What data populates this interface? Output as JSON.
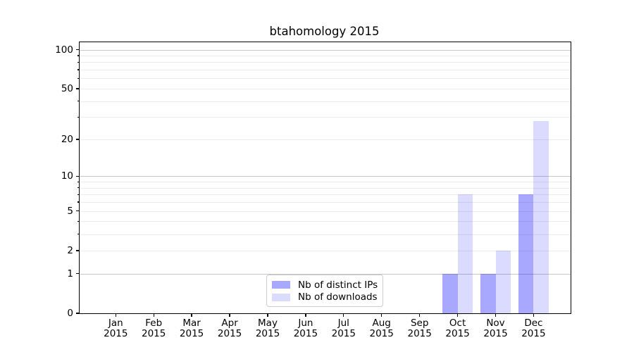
{
  "chart_data": {
    "type": "bar",
    "title": "btahomology 2015",
    "x_axis": {
      "categories": [
        "Jan 2015",
        "Feb 2015",
        "Mar 2015",
        "Apr 2015",
        "May 2015",
        "Jun 2015",
        "Jul 2015",
        "Aug 2015",
        "Sep 2015",
        "Oct 2015",
        "Nov 2015",
        "Dec 2015"
      ],
      "tick_label_line1": [
        "Jan",
        "Feb",
        "Mar",
        "Apr",
        "May",
        "Jun",
        "Jul",
        "Aug",
        "Sep",
        "Oct",
        "Nov",
        "Dec"
      ],
      "tick_label_line2": "2015"
    },
    "y_axis": {
      "scale": "log1p",
      "tick_labels": [
        "0",
        "1",
        "2",
        "5",
        "10",
        "20",
        "50",
        "100"
      ],
      "tick_values": [
        0,
        1,
        2,
        5,
        10,
        20,
        50,
        100
      ],
      "major_gridlines": [
        1,
        10,
        100
      ],
      "minor_gridlines": [
        2,
        3,
        4,
        5,
        6,
        7,
        8,
        9,
        20,
        30,
        40,
        50,
        60,
        70,
        80,
        90
      ],
      "ylim": [
        0,
        114
      ]
    },
    "series": [
      {
        "name": "Nb of distinct IPs",
        "color": "rgba(0, 0, 255, 0.34)",
        "values": [
          0,
          0,
          0,
          0,
          0,
          0,
          0,
          0,
          0,
          1,
          1,
          7
        ]
      },
      {
        "name": "Nb of downloads",
        "color": "rgba(0, 0, 255, 0.14)",
        "values": [
          0,
          0,
          0,
          0,
          0,
          0,
          0,
          0,
          0,
          7,
          2,
          28
        ]
      }
    ],
    "legend": {
      "position": "lower center",
      "items": [
        "Nb of distinct IPs",
        "Nb of downloads"
      ]
    },
    "layout_hints": {
      "grid": "horizontal only",
      "background": "#ffffff",
      "spine_color": "#000000",
      "grid_major_color": "#c6c6c6",
      "grid_minor_color": "#ebebeb"
    }
  }
}
